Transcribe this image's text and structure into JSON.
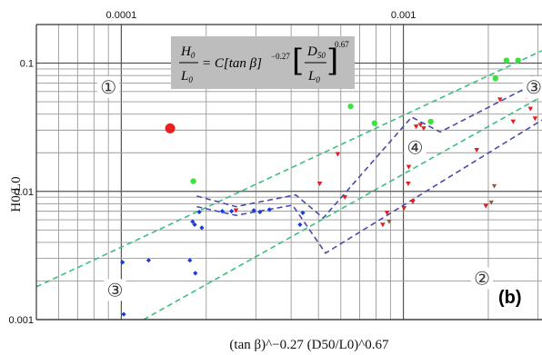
{
  "chart_data": {
    "type": "scatter",
    "panel_label": "(b)",
    "xlabel": "(tan β)^−0.27 (D50/L0)^0.67",
    "ylabel": "H0/L0",
    "xscale": "log",
    "yscale": "log",
    "xlim": [
      5e-05,
      0.0031
    ],
    "ylim": [
      0.001,
      0.2
    ],
    "grid": true,
    "x_ticks": [
      {
        "value": 0.0001,
        "label": "0.0001"
      },
      {
        "value": 0.001,
        "label": "0.001"
      }
    ],
    "y_ticks": [
      {
        "value": 0.001,
        "label": "0.001"
      },
      {
        "value": 0.01,
        "label": "0.01"
      },
      {
        "value": 0.1,
        "label": "0.1"
      }
    ],
    "formula": {
      "lhs_num": "H",
      "lhs_num_sub": "0",
      "lhs_den": "L",
      "lhs_den_sub": "0",
      "eq": "= C[tan β]",
      "exp1": "−0.27",
      "rhs_num": "D",
      "rhs_num_sub": "50",
      "rhs_den": "L",
      "rhs_den_sub": "0",
      "exp2": "0.67"
    },
    "zones": [
      {
        "label": "①",
        "x": 9e-05,
        "y": 0.065
      },
      {
        "label": "②",
        "x": 0.0019,
        "y": 0.0021
      },
      {
        "label": "③",
        "x": 9.5e-05,
        "y": 0.0017
      },
      {
        "label": "③",
        "x": 0.0029,
        "y": 0.065
      },
      {
        "label": "④",
        "x": 0.0011,
        "y": 0.022
      }
    ],
    "boundaries": [
      {
        "name": "dashed-green-upper",
        "color": "#3dbf7f",
        "dash": "dash",
        "points": [
          [
            5e-05,
            0.0018
          ],
          [
            0.0031,
            0.125
          ]
        ]
      },
      {
        "name": "dashed-green-lower",
        "color": "#3dbf7f",
        "dash": "dash",
        "points": [
          [
            0.00012,
            0.001
          ],
          [
            0.0031,
            0.055
          ]
        ]
      },
      {
        "name": "dashed-blue-upper",
        "color": "#4a4aa8",
        "dash": "dash",
        "points": [
          [
            0.000185,
            0.0092
          ],
          [
            0.000255,
            0.0076
          ],
          [
            0.000415,
            0.0094
          ],
          [
            0.00052,
            0.0062
          ],
          [
            0.00107,
            0.038
          ],
          [
            0.00135,
            0.029
          ],
          [
            0.00265,
            0.062
          ],
          [
            0.0031,
            0.055
          ]
        ]
      },
      {
        "name": "dashed-blue-lower",
        "color": "#4a4aa8",
        "dash": "dash",
        "points": [
          [
            0.000185,
            0.0076
          ],
          [
            0.000255,
            0.0065
          ],
          [
            0.000405,
            0.0078
          ],
          [
            0.00053,
            0.0033
          ],
          [
            0.0031,
            0.036
          ]
        ]
      }
    ],
    "series": [
      {
        "marker": "circle",
        "color": "#e82020",
        "size": 5.5,
        "points": [
          [
            0.000149,
            0.031
          ]
        ]
      },
      {
        "marker": "circle",
        "color": "#3de33d",
        "size": 3.2,
        "points": [
          [
            0.00018,
            0.012
          ],
          [
            0.00065,
            0.046
          ],
          [
            0.00079,
            0.034
          ],
          [
            0.00125,
            0.035
          ],
          [
            0.00212,
            0.076
          ],
          [
            0.00232,
            0.105
          ],
          [
            0.00255,
            0.105
          ],
          [
            0.00286,
            0.076
          ]
        ]
      },
      {
        "marker": "diamond",
        "color": "#1a3bd8",
        "size": 2.6,
        "points": [
          [
            0.000101,
            0.0028
          ],
          [
            0.000125,
            0.0029
          ],
          [
            0.000102,
            0.0011
          ],
          [
            0.000175,
            0.0029
          ],
          [
            0.000183,
            0.0023
          ],
          [
            0.000179,
            0.0058
          ],
          [
            0.000182,
            0.0055
          ],
          [
            0.000189,
            0.0069
          ],
          [
            0.000193,
            0.0052
          ],
          [
            0.000228,
            0.007
          ],
          [
            0.000246,
            0.007
          ],
          [
            0.000295,
            0.0071
          ],
          [
            0.000335,
            0.0072
          ],
          [
            0.00043,
            0.0055
          ],
          [
            0.00031,
            0.0069
          ],
          [
            0.00044,
            0.0068
          ],
          [
            0.0031,
            0.062
          ]
        ]
      },
      {
        "marker": "triangle-down",
        "color": "#e02020",
        "size": 2.8,
        "points": [
          [
            0.000255,
            0.0071
          ],
          [
            0.000505,
            0.0115
          ],
          [
            0.000585,
            0.0195
          ],
          [
            0.00062,
            0.009
          ],
          [
            0.000845,
            0.0055
          ],
          [
            0.000875,
            0.0068
          ],
          [
            0.001005,
            0.0074
          ],
          [
            0.00104,
            0.0115
          ],
          [
            0.001045,
            0.0155
          ],
          [
            0.00111,
            0.032
          ],
          [
            0.00115,
            0.033
          ],
          [
            0.00118,
            0.031
          ],
          [
            0.00108,
            0.0083
          ],
          [
            0.00182,
            0.021
          ],
          [
            0.00196,
            0.0077
          ],
          [
            0.0022,
            0.052
          ],
          [
            0.00245,
            0.035
          ],
          [
            0.00273,
            0.055
          ],
          [
            0.00282,
            0.044
          ],
          [
            0.00293,
            0.037
          ]
        ]
      },
      {
        "marker": "triangle-down",
        "color": "#8a5a3a",
        "size": 2.6,
        "points": [
          [
            0.00089,
            0.0058
          ],
          [
            0.00205,
            0.0082
          ],
          [
            0.0021,
            0.011
          ]
        ]
      }
    ]
  }
}
